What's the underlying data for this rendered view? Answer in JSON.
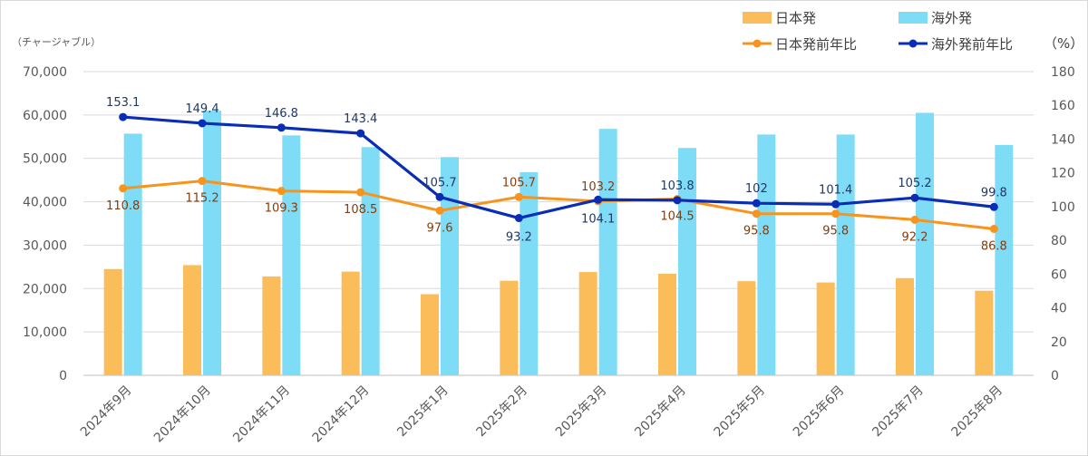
{
  "chart_data": {
    "type": "bar",
    "categories": [
      "2024年9月",
      "2024年10月",
      "2024年11月",
      "2024年12月",
      "2025年1月",
      "2025年2月",
      "2025年3月",
      "2025年4月",
      "2025年5月",
      "2025年6月",
      "2025年7月",
      "2025年8月"
    ],
    "y_left": {
      "unit_label": "（チャージャブル）",
      "range": [
        0,
        70000
      ],
      "ticks": [
        "0",
        "10,000",
        "20,000",
        "30,000",
        "40,000",
        "50,000",
        "60,000",
        "70,000"
      ]
    },
    "y_right": {
      "unit_label": "（%）",
      "range": [
        0,
        180
      ],
      "ticks": [
        "0",
        "20",
        "40",
        "60",
        "80",
        "100",
        "120",
        "140",
        "160",
        "180"
      ]
    },
    "grid": true,
    "legend_position": "top-right",
    "series": [
      {
        "name": "日本発",
        "type": "bar",
        "axis": "left",
        "color": "#fbbd5a",
        "values": [
          24500,
          25400,
          22800,
          23900,
          18700,
          21800,
          23800,
          23400,
          21700,
          21400,
          22400,
          19500
        ]
      },
      {
        "name": "海外発",
        "type": "bar",
        "axis": "left",
        "color": "#7fdcf7",
        "values": [
          55700,
          61000,
          55300,
          52600,
          50300,
          46800,
          56800,
          52400,
          55500,
          55500,
          60500,
          53100
        ]
      },
      {
        "name": "日本発前年比",
        "type": "line",
        "axis": "right",
        "color": "#f7941d",
        "label_color": "#843c0c",
        "values": [
          110.8,
          115.2,
          109.3,
          108.5,
          97.6,
          105.7,
          103.2,
          104.5,
          95.8,
          95.8,
          92.2,
          86.8
        ],
        "labels": [
          "110.8",
          "115.2",
          "109.3",
          "108.5",
          "97.6",
          "105.7",
          "103.2",
          "104.5",
          "95.8",
          "95.8",
          "92.2",
          "86.8"
        ]
      },
      {
        "name": "海外発前年比",
        "type": "line",
        "axis": "right",
        "color": "#0a2db5",
        "label_color": "#203864",
        "values": [
          153.1,
          149.4,
          146.8,
          143.4,
          105.7,
          93.2,
          104.1,
          103.8,
          102,
          101.4,
          105.2,
          99.8
        ],
        "labels": [
          "153.1",
          "149.4",
          "146.8",
          "143.4",
          "105.7",
          "93.2",
          "104.1",
          "103.8",
          "102",
          "101.4",
          "105.2",
          "99.8"
        ]
      }
    ]
  }
}
